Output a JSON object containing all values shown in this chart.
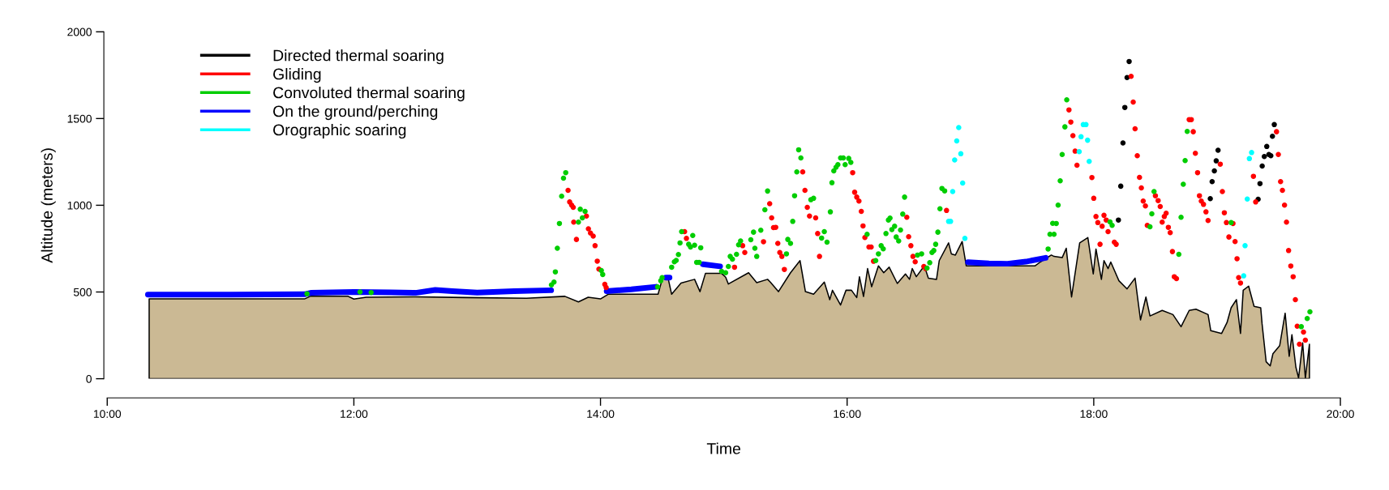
{
  "chart_data": {
    "type": "scatter",
    "xlabel": "Time",
    "ylabel": "Altitude (meters)",
    "xlim": [
      10,
      20
    ],
    "ylim": [
      0,
      2000
    ],
    "xticks": [
      {
        "value": 10,
        "label": "10:00"
      },
      {
        "value": 12,
        "label": "12:00"
      },
      {
        "value": 14,
        "label": "14:00"
      },
      {
        "value": 16,
        "label": "16:00"
      },
      {
        "value": 18,
        "label": "18:00"
      },
      {
        "value": 20,
        "label": "20:00"
      }
    ],
    "yticks": [
      0,
      500,
      1000,
      1500,
      2000
    ],
    "legend": "top left",
    "series": [
      {
        "type": "area",
        "color": "#cbb994",
        "x": [
          10.34,
          11.6,
          11.65,
          11.95,
          12.0,
          12.1,
          12.5,
          12.9,
          13.4,
          13.711,
          13.821,
          13.9,
          14.0,
          14.062,
          14.467,
          14.5,
          14.544,
          14.577,
          14.653,
          14.763,
          14.807,
          14.851,
          14.982,
          15.015,
          15.037,
          15.201,
          15.267,
          15.355,
          15.377,
          15.443,
          15.541,
          15.618,
          15.662,
          15.728,
          15.815,
          15.859,
          15.881,
          15.947,
          15.991,
          16.035,
          16.078,
          16.1,
          16.133,
          16.166,
          16.199,
          16.254,
          16.297,
          16.341,
          16.407,
          16.473,
          16.506,
          16.528,
          16.561,
          16.626,
          16.659,
          16.725,
          16.747,
          16.823,
          16.845,
          16.878,
          16.933,
          16.966,
          17.525,
          17.569,
          17.656,
          17.678,
          17.744,
          17.777,
          17.82,
          17.886,
          17.952,
          17.996,
          18.018,
          18.062,
          18.083,
          18.116,
          18.138,
          18.204,
          18.27,
          18.335,
          18.379,
          18.423,
          18.456,
          18.555,
          18.642,
          18.708,
          18.774,
          18.829,
          18.927,
          18.949,
          19.037,
          19.081,
          19.114,
          19.157,
          19.19,
          19.212,
          19.256,
          19.3,
          19.354,
          19.365,
          19.398,
          19.431,
          19.453,
          19.508,
          19.552,
          19.585,
          19.607,
          19.639,
          19.661,
          19.694,
          19.716,
          19.749
        ],
        "values": [
          460,
          460,
          476,
          476,
          459,
          470,
          472,
          468,
          464,
          475,
          443,
          470,
          460,
          487,
          487,
          573,
          593,
          487,
          551,
          573,
          502,
          607,
          607,
          585,
          546,
          611,
          554,
          573,
          557,
          502,
          611,
          681,
          502,
          487,
          557,
          456,
          510,
          425,
          510,
          510,
          468,
          588,
          474,
          635,
          530,
          651,
          611,
          643,
          549,
          604,
          573,
          635,
          588,
          651,
          580,
          573,
          681,
          783,
          720,
          713,
          791,
          651,
          651,
          674,
          713,
          705,
          698,
          752,
          471,
          783,
          814,
          604,
          748,
          573,
          681,
          635,
          673,
          565,
          518,
          580,
          339,
          471,
          362,
          394,
          370,
          300,
          394,
          401,
          370,
          277,
          261,
          324,
          409,
          456,
          261,
          510,
          534,
          417,
          409,
          316,
          98,
          74,
          144,
          191,
          378,
          129,
          254,
          67,
          4,
          207,
          4,
          199
        ]
      },
      {
        "marker": "circle",
        "name": "Directed thermal soaring",
        "color": "#000000",
        "x": [
          18.2,
          18.219,
          18.237,
          18.252,
          18.27,
          18.287,
          18.945,
          18.96,
          18.978,
          18.993,
          19.008,
          19.333,
          19.348,
          19.366,
          19.383,
          19.403,
          19.42,
          19.436,
          19.449,
          19.464
        ],
        "values": [
          915,
          1110,
          1359,
          1564,
          1736,
          1829,
          1038,
          1136,
          1198,
          1256,
          1317,
          1035,
          1125,
          1226,
          1281,
          1339,
          1293,
          1286,
          1398,
          1465
        ]
      },
      {
        "marker": "circle",
        "name": "Gliding",
        "color": "#ff0000",
        "x": [
          13.737,
          13.75,
          13.766,
          13.779,
          13.783,
          13.805,
          13.886,
          13.902,
          13.919,
          13.941,
          13.956,
          13.974,
          13.987,
          14.035,
          14.046,
          14.682,
          14.697,
          15.087,
          15.153,
          15.17,
          15.322,
          15.372,
          15.388,
          15.403,
          15.421,
          15.438,
          15.454,
          15.471,
          15.491,
          15.64,
          15.658,
          15.677,
          15.695,
          15.745,
          15.761,
          15.776,
          16.045,
          16.061,
          16.078,
          16.096,
          16.115,
          16.129,
          16.144,
          16.177,
          16.195,
          16.214,
          16.484,
          16.499,
          16.517,
          16.534,
          16.552,
          16.622,
          16.637,
          16.806,
          17.799,
          17.814,
          17.831,
          17.849,
          17.864,
          17.985,
          18.0,
          18.018,
          18.033,
          18.051,
          18.068,
          18.083,
          18.101,
          18.116,
          18.167,
          18.182,
          18.303,
          18.32,
          18.335,
          18.353,
          18.371,
          18.386,
          18.401,
          18.419,
          18.434,
          18.5,
          18.522,
          18.539,
          18.555,
          18.572,
          18.587,
          18.605,
          18.62,
          18.638,
          18.653,
          18.671,
          18.774,
          18.791,
          18.807,
          18.824,
          18.842,
          18.857,
          18.872,
          18.89,
          18.91,
          18.927,
          19.026,
          19.043,
          19.059,
          19.076,
          19.096,
          19.129,
          19.146,
          19.162,
          19.175,
          19.19,
          19.295,
          19.313,
          19.482,
          19.497,
          19.515,
          19.53,
          19.547,
          19.563,
          19.58,
          19.598,
          19.617,
          19.635,
          19.65,
          19.668,
          19.701,
          19.716
        ],
        "values": [
          1086,
          1019,
          1001,
          988,
          903,
          803,
          938,
          864,
          840,
          822,
          767,
          678,
          632,
          544,
          526,
          848,
          809,
          643,
          767,
          728,
          790,
          1009,
          927,
          871,
          873,
          780,
          728,
          705,
          630,
          1192,
          1086,
          988,
          938,
          927,
          837,
          705,
          1188,
          1075,
          1047,
          1024,
          965,
          881,
          814,
          759,
          759,
          677,
          931,
          819,
          767,
          705,
          674,
          647,
          635,
          970,
          1550,
          1480,
          1401,
          1312,
          1231,
          1160,
          1040,
          935,
          900,
          775,
          879,
          942,
          915,
          848,
          787,
          775,
          1743,
          1595,
          1441,
          1286,
          1161,
          1100,
          1024,
          996,
          884,
          1055,
          1027,
          993,
          903,
          935,
          954,
          873,
          842,
          733,
          588,
          577,
          1494,
          1494,
          1424,
          1300,
          1188,
          1055,
          1024,
          1005,
          962,
          912,
          1237,
          1079,
          957,
          900,
          817,
          895,
          791,
          692,
          583,
          552,
          1167,
          1019,
          1424,
          1293,
          1136,
          1086,
          1001,
          903,
          739,
          650,
          588,
          456,
          303,
          199,
          269,
          222
        ]
      },
      {
        "marker": "circle",
        "name": "Convoluted thermal soaring",
        "color": "#00cd00",
        "x": [
          11.62,
          12.05,
          12.14,
          13.602,
          13.623,
          13.634,
          13.65,
          13.667,
          13.685,
          13.7,
          13.718,
          13.821,
          13.836,
          13.853,
          13.875,
          14.007,
          14.018,
          14.463,
          14.489,
          14.5,
          14.577,
          14.599,
          14.614,
          14.632,
          14.645,
          14.658,
          14.715,
          14.73,
          14.748,
          14.763,
          14.78,
          14.8,
          14.813,
          14.982,
          15.015,
          15.037,
          15.052,
          15.07,
          15.103,
          15.12,
          15.136,
          15.219,
          15.241,
          15.252,
          15.267,
          15.3,
          15.333,
          15.355,
          15.508,
          15.519,
          15.541,
          15.559,
          15.574,
          15.592,
          15.607,
          15.625,
          15.706,
          15.728,
          15.793,
          15.815,
          15.837,
          15.864,
          15.877,
          15.892,
          15.91,
          15.925,
          15.947,
          15.969,
          15.984,
          16.013,
          16.03,
          16.162,
          16.232,
          16.254,
          16.276,
          16.293,
          16.315,
          16.335,
          16.348,
          16.363,
          16.385,
          16.398,
          16.418,
          16.433,
          16.451,
          16.466,
          16.571,
          16.604,
          16.648,
          16.67,
          16.688,
          16.703,
          16.718,
          16.736,
          16.753,
          16.769,
          16.791,
          17.63,
          17.645,
          17.667,
          17.678,
          17.696,
          17.711,
          17.728,
          17.744,
          17.766,
          17.781,
          18.132,
          18.149,
          18.456,
          18.471,
          18.489,
          18.69,
          18.708,
          18.726,
          18.741,
          18.758,
          19.114,
          19.683,
          19.731,
          19.753
        ],
        "values": [
          490,
          500,
          497,
          541,
          557,
          616,
          752,
          895,
          1052,
          1156,
          1188,
          903,
          977,
          927,
          965,
          624,
          601,
          529,
          565,
          583,
          643,
          674,
          682,
          716,
          783,
          848,
          775,
          759,
          826,
          770,
          671,
          671,
          755,
          619,
          611,
          647,
          705,
          689,
          717,
          772,
          794,
          801,
          845,
          752,
          705,
          856,
          974,
          1082,
          720,
          803,
          780,
          907,
          1055,
          1192,
          1320,
          1273,
          1032,
          1040,
          811,
          848,
          787,
          962,
          1130,
          1198,
          1219,
          1234,
          1273,
          1273,
          1234,
          1270,
          1247,
          833,
          681,
          720,
          767,
          749,
          837,
          915,
          926,
          860,
          879,
          817,
          794,
          857,
          949,
          1047,
          713,
          720,
          638,
          669,
          728,
          739,
          775,
          845,
          980,
          1097,
          1083,
          748,
          833,
          896,
          833,
          895,
          1001,
          1141,
          1293,
          1452,
          1608,
          904,
          884,
          876,
          951,
          1079,
          717,
          931,
          1121,
          1258,
          1426,
          900,
          300,
          347,
          386
        ]
      },
      {
        "type": "line",
        "name": "On the ground/perching",
        "color": "#0000ff",
        "x": [
          10.33,
          11.0,
          11.6,
          11.65,
          12.0,
          12.3,
          12.5,
          12.66,
          12.8,
          13.0,
          13.3,
          13.6,
          13.8,
          14.05,
          14.25,
          14.45,
          14.49,
          14.53,
          14.56,
          14.7,
          14.83,
          14.97,
          16.0,
          16.98,
          17.15,
          17.3,
          17.45,
          17.61
        ],
        "values": [
          485,
          485,
          487,
          495,
          500,
          498,
          495,
          512,
          505,
          497,
          505,
          510,
          null,
          505,
          515,
          530,
          null,
          583,
          583,
          null,
          660,
          648,
          null,
          672,
          665,
          663,
          675,
          697
        ]
      },
      {
        "marker": "circle",
        "name": "Orographic soaring",
        "color": "#00ffff",
        "x": [
          16.823,
          16.839,
          16.856,
          16.872,
          16.889,
          16.905,
          16.922,
          16.937,
          16.955,
          17.882,
          17.897,
          17.915,
          17.937,
          17.95,
          17.963,
          19.216,
          19.227,
          19.245,
          19.262,
          19.28
        ],
        "values": [
          907,
          907,
          1079,
          1261,
          1371,
          1448,
          1297,
          1128,
          809,
          1309,
          1395,
          1465,
          1465,
          1375,
          1253,
          593,
          767,
          1036,
          1269,
          1304
        ]
      }
    ]
  }
}
